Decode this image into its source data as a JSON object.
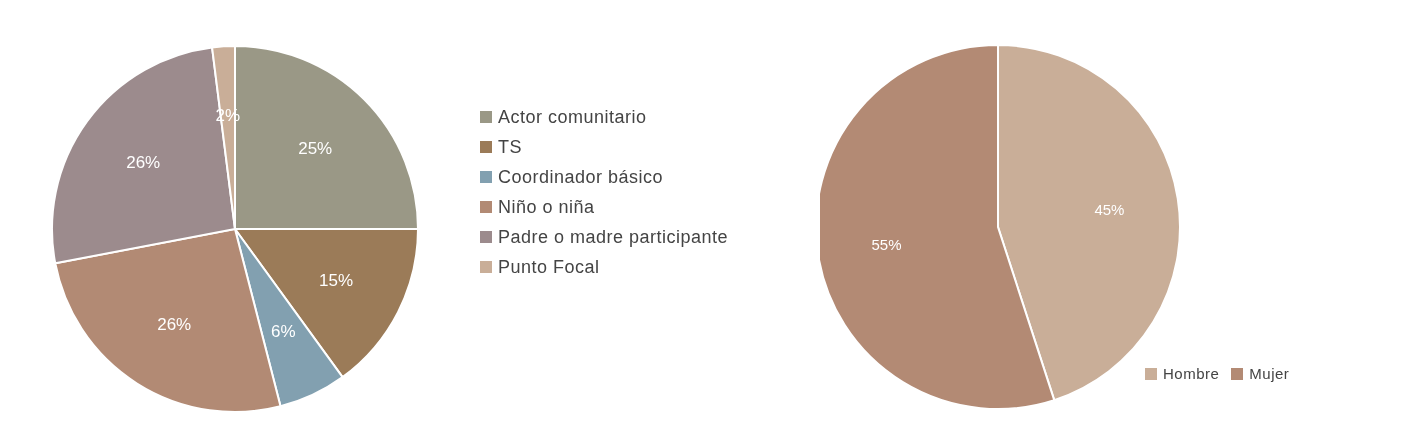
{
  "chart_data": [
    {
      "type": "pie",
      "categories": [
        "Actor comunitario",
        "TS",
        "Coordinador básico",
        "Niño o niña",
        "Padre o madre participante",
        "Punto Focal"
      ],
      "values": [
        25,
        15,
        6,
        26,
        26,
        2
      ],
      "colors": [
        "#9a9886",
        "#9b7b58",
        "#82a0b0",
        "#b28a74",
        "#9c8b8d",
        "#c9ae98"
      ],
      "value_labels": [
        "25%",
        "15%",
        "6%",
        "26%",
        "26%",
        "2%"
      ],
      "legend": "right"
    },
    {
      "type": "pie",
      "categories": [
        "Hombre",
        "Mujer"
      ],
      "values": [
        45,
        55
      ],
      "colors": [
        "#c9ae98",
        "#b38a74"
      ],
      "value_labels": [
        "45%",
        "55%"
      ],
      "legend": "bottom right"
    }
  ]
}
